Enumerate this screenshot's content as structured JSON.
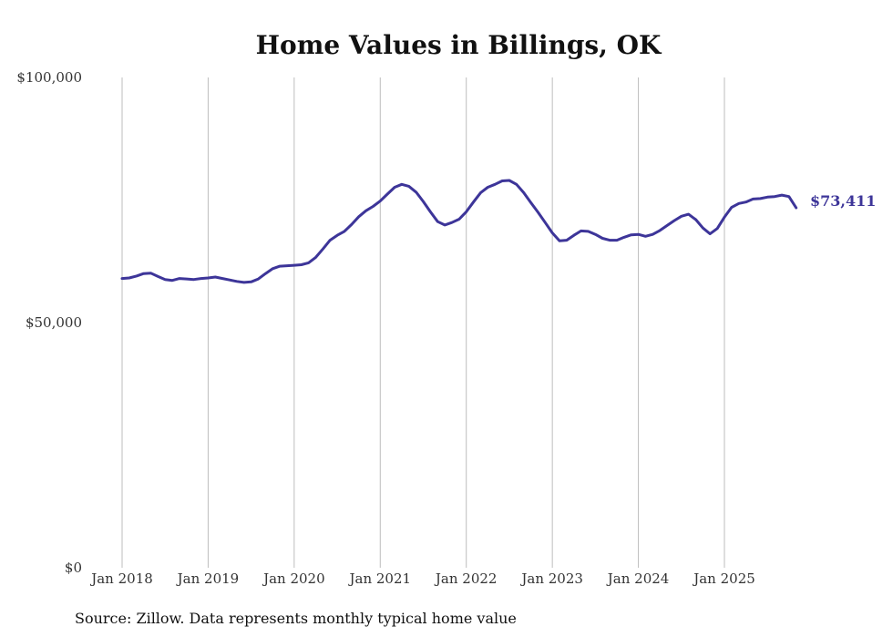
{
  "chart_data": {
    "type": "line",
    "title": "Home Values in Billings, OK",
    "xlabel": "",
    "ylabel": "",
    "ylim": [
      0,
      100000
    ],
    "y_ticks": [
      {
        "value": 0,
        "label": "$0"
      },
      {
        "value": 50000,
        "label": "$50,000"
      },
      {
        "value": 100000,
        "label": "$100,000"
      }
    ],
    "x_ticks": [
      {
        "value": 2018.0,
        "label": "Jan 2018"
      },
      {
        "value": 2019.0,
        "label": "Jan 2019"
      },
      {
        "value": 2020.0,
        "label": "Jan 2020"
      },
      {
        "value": 2021.0,
        "label": "Jan 2021"
      },
      {
        "value": 2022.0,
        "label": "Jan 2022"
      },
      {
        "value": 2023.0,
        "label": "Jan 2023"
      },
      {
        "value": 2024.0,
        "label": "Jan 2024"
      },
      {
        "value": 2025.0,
        "label": "Jan 2025"
      }
    ],
    "grid": "vertical",
    "series": [
      {
        "name": "Typical home value",
        "color": "#3d3599",
        "end_label": "$73,411",
        "x": [
          2018.0,
          2018.083,
          2018.167,
          2018.25,
          2018.333,
          2018.417,
          2018.5,
          2018.583,
          2018.667,
          2018.75,
          2018.833,
          2018.917,
          2019.0,
          2019.083,
          2019.167,
          2019.25,
          2019.333,
          2019.417,
          2019.5,
          2019.583,
          2019.667,
          2019.75,
          2019.833,
          2019.917,
          2020.0,
          2020.083,
          2020.167,
          2020.25,
          2020.333,
          2020.417,
          2020.5,
          2020.583,
          2020.667,
          2020.75,
          2020.833,
          2020.917,
          2021.0,
          2021.083,
          2021.167,
          2021.25,
          2021.333,
          2021.417,
          2021.5,
          2021.583,
          2021.667,
          2021.75,
          2021.833,
          2021.917,
          2022.0,
          2022.083,
          2022.167,
          2022.25,
          2022.333,
          2022.417,
          2022.5,
          2022.583,
          2022.667,
          2022.75,
          2022.833,
          2022.917,
          2023.0,
          2023.083,
          2023.167,
          2023.25,
          2023.333,
          2023.417,
          2023.5,
          2023.583,
          2023.667,
          2023.75,
          2023.833,
          2023.917,
          2024.0,
          2024.083,
          2024.167,
          2024.25,
          2024.333,
          2024.417,
          2024.5,
          2024.583,
          2024.667,
          2024.75,
          2024.833,
          2024.917,
          2025.0,
          2025.083,
          2025.167,
          2025.25,
          2025.333,
          2025.417,
          2025.5,
          2025.583,
          2025.667,
          2025.75,
          2025.833
        ],
        "values": [
          59000,
          59100,
          59500,
          60000,
          60100,
          59400,
          58800,
          58600,
          59000,
          58900,
          58800,
          59000,
          59100,
          59300,
          59000,
          58700,
          58400,
          58200,
          58300,
          58900,
          60000,
          61000,
          61500,
          61600,
          61700,
          61800,
          62200,
          63300,
          65000,
          66800,
          67800,
          68600,
          70000,
          71600,
          72800,
          73700,
          74800,
          76200,
          77600,
          78200,
          77800,
          76600,
          74700,
          72600,
          70600,
          69900,
          70400,
          71100,
          72600,
          74600,
          76500,
          77600,
          78200,
          78900,
          79000,
          78200,
          76500,
          74500,
          72500,
          70400,
          68300,
          66700,
          66800,
          67800,
          68700,
          68600,
          68000,
          67200,
          66800,
          66800,
          67400,
          67900,
          68000,
          67600,
          68000,
          68800,
          69800,
          70800,
          71700,
          72100,
          71000,
          69300,
          68100,
          69200,
          71500,
          73500,
          74300,
          74600,
          75200,
          75300,
          75600,
          75700,
          76000,
          75700,
          73411
        ]
      }
    ],
    "source": "Source: Zillow. Data represents monthly typical home value"
  }
}
